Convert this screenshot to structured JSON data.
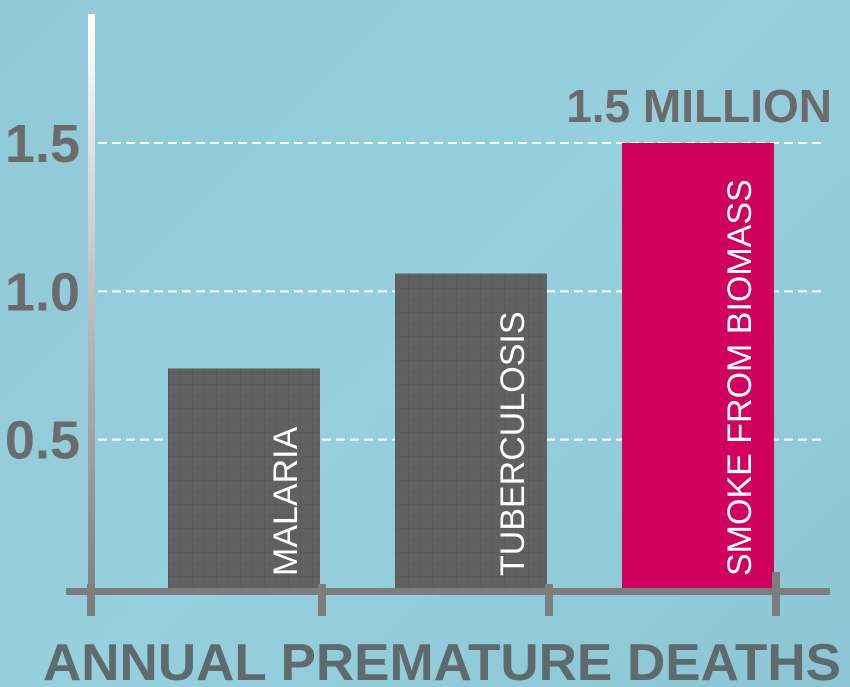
{
  "chart_data": {
    "type": "bar",
    "categories": [
      "MALARIA",
      "TUBERCULOSIS",
      "SMOKE FROM BIOMASS"
    ],
    "values": [
      0.74,
      1.06,
      1.5
    ],
    "ylim": [
      0,
      1.8
    ],
    "yticks": [
      "0.5",
      "1.0",
      "1.5"
    ],
    "xlabel": "ANNUAL PREMATURE DEATHS",
    "ylabel": "",
    "annotation": "1.5 MILLION",
    "grid": "dashed horizontal at ticks",
    "colors": {
      "default_bar": "#616161",
      "highlight_bar": "#d0005f",
      "axis": "#7d7d7d",
      "grid": "#ffffff",
      "text": "#6b6b6b"
    },
    "highlight_index": 2
  }
}
